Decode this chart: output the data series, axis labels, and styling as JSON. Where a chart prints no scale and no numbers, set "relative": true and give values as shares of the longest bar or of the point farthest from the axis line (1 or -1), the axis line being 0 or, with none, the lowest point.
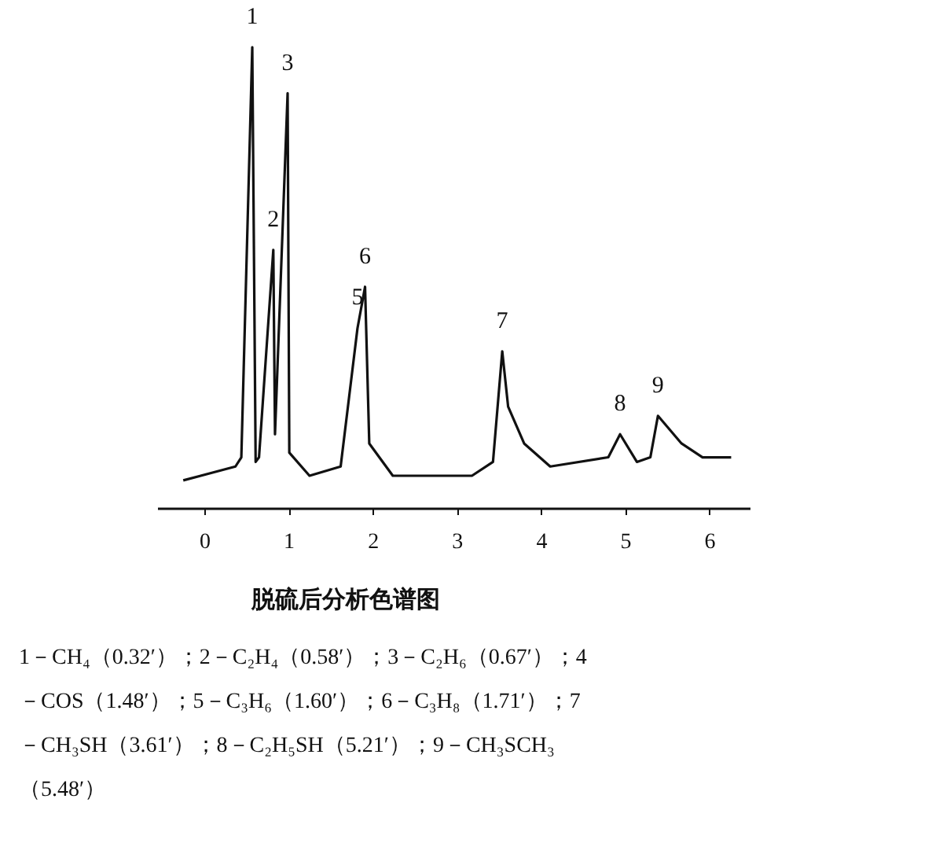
{
  "chart_data": {
    "type": "line",
    "title": "脱硫后分析色谱图",
    "relative": true,
    "color": "#111111",
    "x": [
      -0.25,
      0.37,
      0.44,
      0.57,
      0.61,
      0.65,
      0.82,
      0.84,
      0.99,
      1.01,
      1.25,
      1.62,
      1.82,
      1.91,
      1.96,
      2.24,
      3.18,
      3.43,
      3.54,
      3.61,
      3.8,
      4.11,
      4.8,
      4.94,
      5.14,
      5.3,
      5.39,
      5.67,
      5.92,
      6.26
    ],
    "values": [
      0.06,
      0.09,
      0.11,
      1.0,
      0.1,
      0.11,
      0.56,
      0.16,
      0.9,
      0.12,
      0.07,
      0.09,
      0.39,
      0.48,
      0.14,
      0.07,
      0.07,
      0.1,
      0.34,
      0.22,
      0.14,
      0.09,
      0.11,
      0.16,
      0.1,
      0.11,
      0.2,
      0.14,
      0.11,
      0.11
    ],
    "xlim": [
      -0.56,
      6.48
    ],
    "xticks": [
      0,
      1,
      2,
      3,
      4,
      5,
      6
    ],
    "annotations": [
      {
        "text": "1",
        "x": 0.57,
        "y": 1.0
      },
      {
        "text": "2",
        "x": 0.82,
        "y": 0.56
      },
      {
        "text": "3",
        "x": 0.99,
        "y": 0.9
      },
      {
        "text": "5",
        "x": 1.82,
        "y": 0.39
      },
      {
        "text": "6",
        "x": 1.91,
        "y": 0.48
      },
      {
        "text": "7",
        "x": 3.54,
        "y": 0.34
      },
      {
        "text": "8",
        "x": 4.94,
        "y": 0.16
      },
      {
        "text": "9",
        "x": 5.39,
        "y": 0.2
      },
      "1－CH₄（0.32′）；2－C₂H₄（0.58′）；3－C₂H₆（0.67′）；4",
      "－COS（1.48′）；5－C₃H₆（1.60′）；6－C₃H₈（1.71′）；7",
      "－CH₃SH（3.61′）；8－C₂H₅SH（5.21′）；9－CH₃SCH₃",
      "（5.48′）"
    ]
  }
}
